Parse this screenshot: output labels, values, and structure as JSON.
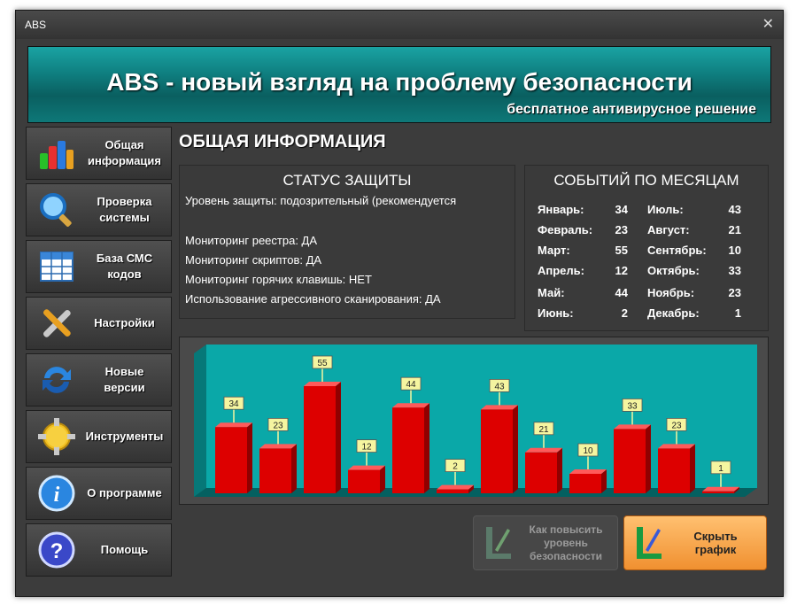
{
  "window": {
    "title": "ABS"
  },
  "banner": {
    "headline": "ABS - новый взгляд на проблему безопасности",
    "subtitle": "бесплатное антивирусное решение"
  },
  "sidebar": {
    "items": [
      {
        "label": "Общая\nинформация",
        "icon": "bar-chart-icon"
      },
      {
        "label": "Проверка\nсистемы",
        "icon": "magnifier-icon"
      },
      {
        "label": "База СМС\nкодов",
        "icon": "spreadsheet-icon"
      },
      {
        "label": "Настройки",
        "icon": "tools-icon"
      },
      {
        "label": "Новые\nверсии",
        "icon": "update-arrows-icon"
      },
      {
        "label": "Инструменты",
        "icon": "gear-icon"
      },
      {
        "label": "О программе",
        "icon": "info-icon"
      },
      {
        "label": "Помощь",
        "icon": "help-icon"
      }
    ]
  },
  "main": {
    "section_title": "ОБЩАЯ ИНФОРМАЦИЯ",
    "status": {
      "title": "СТАТУС ЗАЩИТЫ",
      "protection_level": "Уровень защиты: подозрительный (рекомендуется",
      "registry": "Мониторинг реестра: ДА",
      "scripts": "Мониторинг скриптов: ДА",
      "hotkeys": "Мониторинг горячих клавишь: НЕТ",
      "aggressive": "Использование агрессивного сканирования: ДА"
    },
    "events": {
      "title": "СОБЫТИЙ ПО МЕСЯЦАМ",
      "months": [
        {
          "name": "Январь:",
          "value": "34"
        },
        {
          "name": "Февраль:",
          "value": "23"
        },
        {
          "name": "Март:",
          "value": "55"
        },
        {
          "name": "Апрель:",
          "value": "12"
        },
        {
          "name": "Май:",
          "value": "44"
        },
        {
          "name": "Июнь:",
          "value": "2"
        },
        {
          "name": "Июль:",
          "value": "43"
        },
        {
          "name": "Август:",
          "value": "21"
        },
        {
          "name": "Сентябрь:",
          "value": "10"
        },
        {
          "name": "Октябрь:",
          "value": "33"
        },
        {
          "name": "Ноябрь:",
          "value": "23"
        },
        {
          "name": "Декабрь:",
          "value": "1"
        }
      ]
    }
  },
  "chart_data": {
    "type": "bar",
    "categories": [
      "Январь",
      "Февраль",
      "Март",
      "Апрель",
      "Май",
      "Июнь",
      "Июль",
      "Август",
      "Сентябрь",
      "Октябрь",
      "Ноябрь",
      "Декабрь"
    ],
    "values": [
      34,
      23,
      55,
      12,
      44,
      2,
      43,
      21,
      10,
      33,
      23,
      1
    ],
    "title": "",
    "xlabel": "",
    "ylabel": "",
    "ylim": [
      0,
      60
    ],
    "grid": false,
    "legend": "none",
    "colors": {
      "bar": "#dd0000",
      "bar_top": "#ff5a5a",
      "bar_side": "#900000",
      "background": "#0aa8a8",
      "label_bg": "#f5f5a0"
    }
  },
  "buttons": {
    "improve": "Как повысить\nуровень\nбезопасности",
    "hide_chart": "Скрыть\nграфик"
  },
  "colors": {
    "accent": "#0f8a8a",
    "primary_button": "#f7a94b"
  }
}
